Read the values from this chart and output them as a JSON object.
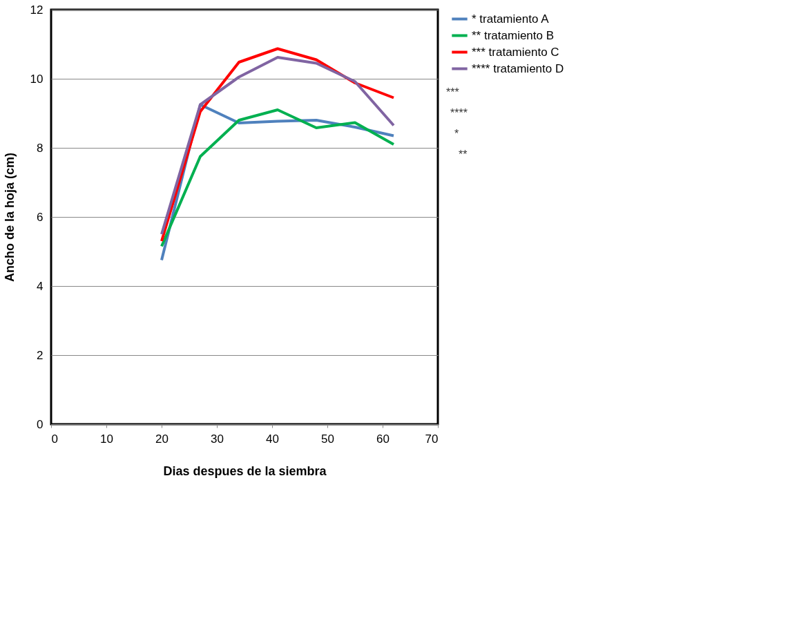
{
  "chart_data": {
    "type": "line",
    "xlabel": "Dias despues de la siembra",
    "ylabel": "Ancho de la hoja (cm)",
    "x": [
      20,
      27,
      34,
      41,
      48,
      55,
      62
    ],
    "series": [
      {
        "name": "* tratamiento A",
        "color": "#4f81bd",
        "values": [
          4.75,
          9.25,
          8.72,
          8.77,
          8.8,
          8.6,
          8.35
        ]
      },
      {
        "name": "** tratamiento B",
        "color": "#00b050",
        "values": [
          5.15,
          7.75,
          8.8,
          9.1,
          8.58,
          8.73,
          8.1
        ]
      },
      {
        "name": "*** tratamiento C",
        "color": "#ff0000",
        "values": [
          5.3,
          9.05,
          10.48,
          10.87,
          10.55,
          9.88,
          9.45
        ]
      },
      {
        "name": "**** tratamiento D",
        "color": "#8064a2",
        "values": [
          5.5,
          9.25,
          10.05,
          10.62,
          10.45,
          9.92,
          8.65
        ]
      }
    ],
    "annotations": [
      "***",
      "****",
      "*",
      "**"
    ],
    "xlim": [
      0,
      70
    ],
    "xticks": [
      0,
      10,
      20,
      30,
      40,
      50,
      60,
      70
    ],
    "ylim": [
      0,
      12
    ],
    "yticks": [
      0,
      2,
      4,
      6,
      8,
      10,
      12
    ],
    "grid": "y",
    "legend": "right",
    "marker": "none",
    "line_style": "solid"
  }
}
